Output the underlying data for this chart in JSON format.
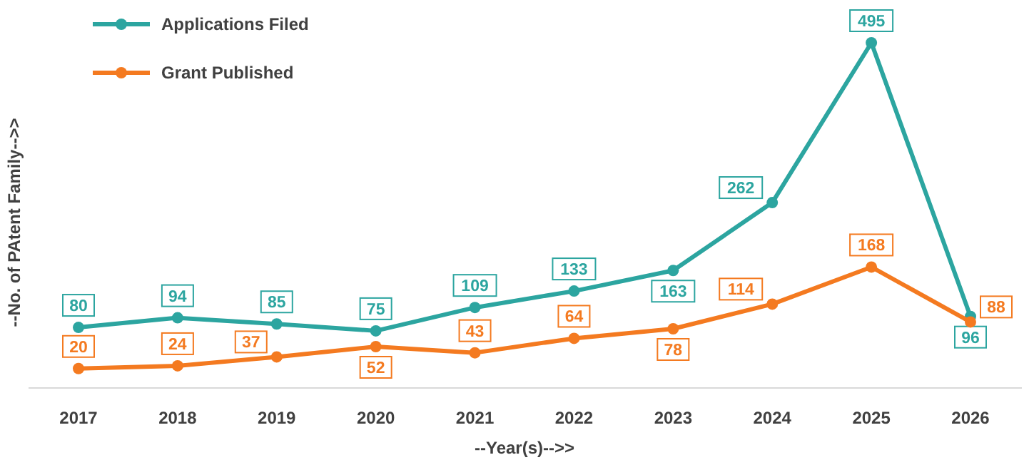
{
  "chart_data": {
    "type": "line",
    "xlabel": "--Year(s)-->>",
    "ylabel": "--No. of PAtent Family-->>",
    "categories": [
      "2017",
      "2018",
      "2019",
      "2020",
      "2021",
      "2022",
      "2023",
      "2024",
      "2025",
      "2026"
    ],
    "series": [
      {
        "name": "Applications Filed",
        "color": "#2ca5a0",
        "values": [
          80,
          94,
          85,
          75,
          109,
          133,
          163,
          262,
          495,
          96
        ]
      },
      {
        "name": "Grant Published",
        "color": "#f47a20",
        "values": [
          20,
          24,
          37,
          52,
          43,
          64,
          78,
          114,
          168,
          88
        ]
      }
    ],
    "data_labels": true,
    "legend": "top left",
    "marker": "circle",
    "line_style": "solid"
  }
}
